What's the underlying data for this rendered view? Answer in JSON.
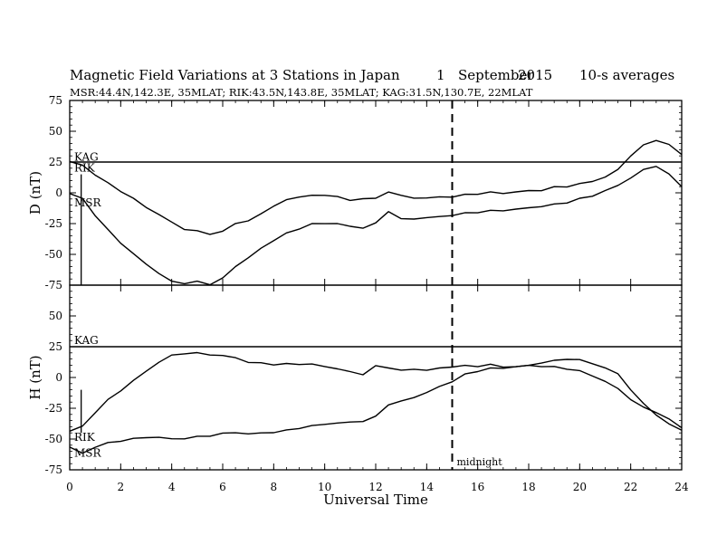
{
  "header": {
    "title": "Magnetic Field Variations at 3 Stations in Japan",
    "day": "1",
    "month": "September",
    "year": "2015",
    "averaging": "10-s averages",
    "stations": "MSR:44.4N,142.3E, 35MLAT;  RIK:43.5N,143.8E, 35MLAT;  KAG:31.5N,130.7E, 22MLAT"
  },
  "chart_data": {
    "type": "line",
    "xlabel": "Universal Time",
    "xlim": [
      0,
      24
    ],
    "xticks": [
      "0",
      "2",
      "4",
      "6",
      "8",
      "10",
      "12",
      "14",
      "16",
      "18",
      "20",
      "22",
      "24"
    ],
    "vline": {
      "x": 15,
      "label": "midnight"
    },
    "panels": [
      {
        "ylabel": "D (nT)",
        "ylim": [
          -75,
          75
        ],
        "yticks": [
          "75",
          "50",
          "25",
          "0",
          "-25",
          "-50",
          "-75"
        ],
        "series": [
          {
            "name": "KAG",
            "x": [
              0,
              24
            ],
            "y": [
              25,
              25
            ]
          },
          {
            "name": "RIK",
            "x": [
              0,
              0.5,
              1,
              1.5,
              2,
              2.5,
              3,
              3.5,
              4,
              4.5,
              5,
              5.5,
              6,
              6.5,
              7,
              7.5,
              8,
              8.5,
              9,
              9.5,
              10,
              10.5,
              11,
              11.5,
              12,
              12.5,
              13,
              13.5,
              14,
              14.5,
              15,
              15.5,
              16,
              16.5,
              17,
              17.5,
              18,
              18.5,
              19,
              19.5,
              20,
              20.5,
              21,
              21.5,
              22,
              22.5,
              23,
              23.5,
              24
            ],
            "y": [
              25,
              22,
              15,
              8,
              2,
              -5,
              -12,
              -18,
              -24,
              -29,
              -31,
              -33,
              -32,
              -25,
              -23,
              -17,
              -10,
              -6,
              -3,
              -3,
              -2,
              -3,
              -6,
              -4,
              -5,
              1,
              -3,
              -4,
              -4,
              -3,
              -3,
              -2,
              -1,
              0,
              0,
              1,
              2,
              2,
              4,
              5,
              7,
              10,
              13,
              19,
              30,
              38,
              43,
              39,
              32
            ]
          },
          {
            "name": "MSR",
            "x": [
              0,
              0.5,
              1,
              1.5,
              2,
              2.5,
              3,
              3.5,
              4,
              4.5,
              5,
              5.5,
              6,
              6.5,
              7,
              7.5,
              8,
              8.5,
              9,
              9.5,
              10,
              10.5,
              11,
              11.5,
              12,
              12.5,
              13,
              13.5,
              14,
              14.5,
              15,
              15.5,
              16,
              16.5,
              17,
              17.5,
              18,
              18.5,
              19,
              19.5,
              20,
              20.5,
              21,
              21.5,
              22,
              22.5,
              23,
              23.5,
              24
            ],
            "y": [
              -1,
              -5,
              -18,
              -30,
              -40,
              -50,
              -58,
              -66,
              -72,
              -73,
              -72,
              -74,
              -70,
              -60,
              -53,
              -45,
              -38,
              -33,
              -29,
              -26,
              -25,
              -25,
              -27,
              -28,
              -25,
              -15,
              -22,
              -21,
              -20,
              -19,
              -18,
              -17,
              -16,
              -15,
              -14,
              -13,
              -12,
              -11,
              -10,
              -8,
              -5,
              -2,
              2,
              6,
              12,
              18,
              22,
              15,
              6
            ]
          }
        ]
      },
      {
        "ylabel": "H (nT)",
        "ylim": [
          -75,
          75
        ],
        "yticks": [
          "75",
          "50",
          "25",
          "0",
          "-25",
          "-50",
          "-75"
        ],
        "series": [
          {
            "name": "KAG",
            "x": [
              0,
              24
            ],
            "y": [
              25,
              25
            ]
          },
          {
            "name": "RIK",
            "x": [
              0,
              0.5,
              1,
              1.5,
              2,
              2.5,
              3,
              3.5,
              4,
              4.5,
              5,
              5.5,
              6,
              6.5,
              7,
              7.5,
              8,
              8.5,
              9,
              9.5,
              10,
              10.5,
              11,
              11.5,
              12,
              12.5,
              13,
              13.5,
              14,
              14.5,
              15,
              15.5,
              16,
              16.5,
              17,
              17.5,
              18,
              18.5,
              19,
              19.5,
              20,
              20.5,
              21,
              21.5,
              22,
              22.5,
              23,
              23.5,
              24
            ],
            "y": [
              -44,
              -40,
              -28,
              -18,
              -10,
              -3,
              5,
              12,
              18,
              20,
              20,
              19,
              17,
              16,
              12,
              12,
              11,
              11,
              11,
              10,
              9,
              7,
              5,
              3,
              9,
              8,
              5,
              7,
              6,
              8,
              9,
              9,
              9,
              10,
              9,
              9,
              10,
              12,
              13,
              15,
              14,
              12,
              8,
              3,
              -10,
              -22,
              -30,
              -38,
              -42
            ]
          },
          {
            "name": "MSR",
            "x": [
              0,
              0.5,
              1,
              1.5,
              2,
              2.5,
              3,
              3.5,
              4,
              4.5,
              5,
              5.5,
              6,
              6.5,
              7,
              7.5,
              8,
              8.5,
              9,
              9.5,
              10,
              10.5,
              11,
              11.5,
              12,
              12.5,
              13,
              13.5,
              14,
              14.5,
              15,
              15.5,
              16,
              16.5,
              17,
              17.5,
              18,
              18.5,
              19,
              19.5,
              20,
              20.5,
              21,
              21.5,
              22,
              22.5,
              23,
              23.5,
              24
            ],
            "y": [
              -57,
              -62,
              -56,
              -53,
              -51,
              -50,
              -49,
              -49,
              -50,
              -49,
              -48,
              -47,
              -46,
              -45,
              -46,
              -45,
              -44,
              -43,
              -41,
              -40,
              -38,
              -37,
              -36,
              -35,
              -32,
              -22,
              -20,
              -16,
              -12,
              -7,
              -3,
              2,
              5,
              7,
              8,
              9,
              10,
              9,
              8,
              7,
              5,
              2,
              -3,
              -9,
              -18,
              -25,
              -28,
              -34,
              -40
            ]
          }
        ]
      }
    ]
  }
}
